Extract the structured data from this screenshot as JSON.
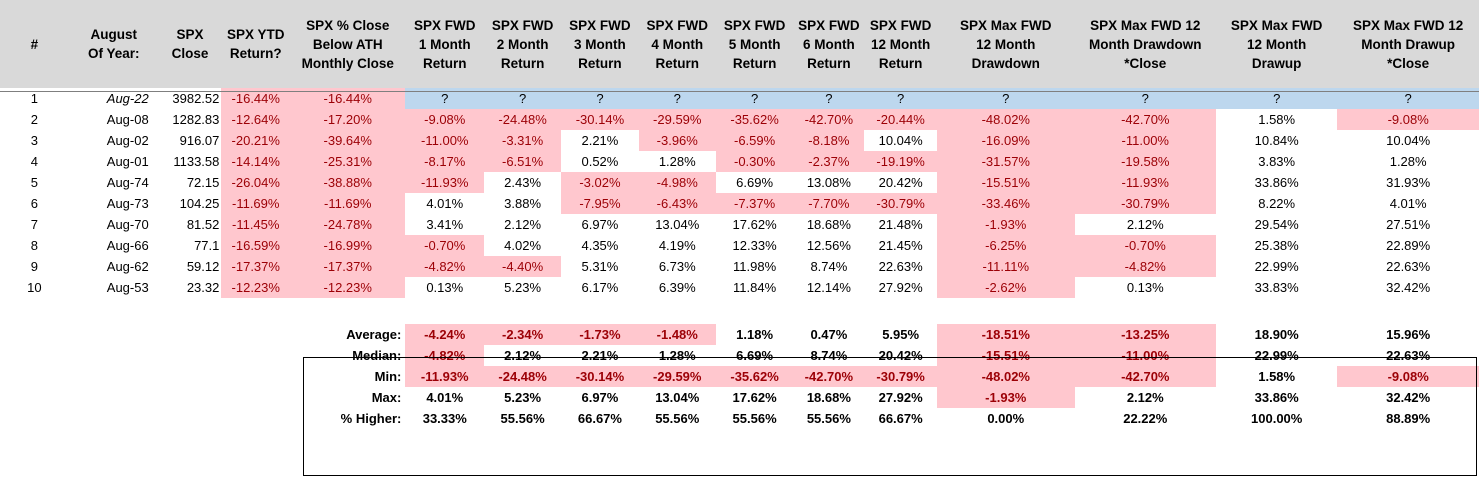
{
  "headers": [
    [
      "#"
    ],
    [
      "August",
      "Of Year:"
    ],
    [
      "SPX",
      "Close"
    ],
    [
      "SPX YTD",
      "Return?"
    ],
    [
      "SPX % Close",
      "Below ATH",
      "Monthly Close"
    ],
    [
      "SPX FWD",
      "1 Month",
      "Return"
    ],
    [
      "SPX FWD",
      "2 Month",
      "Return"
    ],
    [
      "SPX FWD",
      "3 Month",
      "Return"
    ],
    [
      "SPX FWD",
      "4 Month",
      "Return"
    ],
    [
      "SPX FWD",
      "5 Month",
      "Return"
    ],
    [
      "SPX FWD",
      "6 Month",
      "Return"
    ],
    [
      "SPX FWD",
      "12 Month",
      "Return"
    ],
    [
      "SPX Max FWD",
      "12 Month",
      "Drawdown"
    ],
    [
      "SPX Max FWD 12",
      "Month Drawdown",
      "*Close"
    ],
    [
      "SPX Max FWD",
      "12 Month",
      "Drawup"
    ],
    [
      "SPX Max FWD 12",
      "Month Drawup",
      "*Close"
    ]
  ],
  "rows": [
    [
      "1",
      "Aug-22",
      "3982.52",
      "-16.44%",
      "-16.44%",
      "?",
      "?",
      "?",
      "?",
      "?",
      "?",
      "?",
      "?",
      "?",
      "?",
      "?"
    ],
    [
      "2",
      "Aug-08",
      "1282.83",
      "-12.64%",
      "-17.20%",
      "-9.08%",
      "-24.48%",
      "-30.14%",
      "-29.59%",
      "-35.62%",
      "-42.70%",
      "-20.44%",
      "-48.02%",
      "-42.70%",
      "1.58%",
      "-9.08%"
    ],
    [
      "3",
      "Aug-02",
      "916.07",
      "-20.21%",
      "-39.64%",
      "-11.00%",
      "-3.31%",
      "2.21%",
      "-3.96%",
      "-6.59%",
      "-8.18%",
      "10.04%",
      "-16.09%",
      "-11.00%",
      "10.84%",
      "10.04%"
    ],
    [
      "4",
      "Aug-01",
      "1133.58",
      "-14.14%",
      "-25.31%",
      "-8.17%",
      "-6.51%",
      "0.52%",
      "1.28%",
      "-0.30%",
      "-2.37%",
      "-19.19%",
      "-31.57%",
      "-19.58%",
      "3.83%",
      "1.28%"
    ],
    [
      "5",
      "Aug-74",
      "72.15",
      "-26.04%",
      "-38.88%",
      "-11.93%",
      "2.43%",
      "-3.02%",
      "-4.98%",
      "6.69%",
      "13.08%",
      "20.42%",
      "-15.51%",
      "-11.93%",
      "33.86%",
      "31.93%"
    ],
    [
      "6",
      "Aug-73",
      "104.25",
      "-11.69%",
      "-11.69%",
      "4.01%",
      "3.88%",
      "-7.95%",
      "-6.43%",
      "-7.37%",
      "-7.70%",
      "-30.79%",
      "-33.46%",
      "-30.79%",
      "8.22%",
      "4.01%"
    ],
    [
      "7",
      "Aug-70",
      "81.52",
      "-11.45%",
      "-24.78%",
      "3.41%",
      "2.12%",
      "6.97%",
      "13.04%",
      "17.62%",
      "18.68%",
      "21.48%",
      "-1.93%",
      "2.12%",
      "29.54%",
      "27.51%"
    ],
    [
      "8",
      "Aug-66",
      "77.1",
      "-16.59%",
      "-16.99%",
      "-0.70%",
      "4.02%",
      "4.35%",
      "4.19%",
      "12.33%",
      "12.56%",
      "21.45%",
      "-6.25%",
      "-0.70%",
      "25.38%",
      "22.89%"
    ],
    [
      "9",
      "Aug-62",
      "59.12",
      "-17.37%",
      "-17.37%",
      "-4.82%",
      "-4.40%",
      "5.31%",
      "6.73%",
      "11.98%",
      "8.74%",
      "22.63%",
      "-11.11%",
      "-4.82%",
      "22.99%",
      "22.63%"
    ],
    [
      "10",
      "Aug-53",
      "23.32",
      "-12.23%",
      "-12.23%",
      "0.13%",
      "5.23%",
      "6.17%",
      "6.39%",
      "11.84%",
      "12.14%",
      "27.92%",
      "-2.62%",
      "0.13%",
      "33.83%",
      "32.42%"
    ]
  ],
  "summary": [
    {
      "label": "Average:",
      "values": [
        "-4.24%",
        "-2.34%",
        "-1.73%",
        "-1.48%",
        "1.18%",
        "0.47%",
        "5.95%",
        "-18.51%",
        "-13.25%",
        "18.90%",
        "15.96%"
      ]
    },
    {
      "label": "Median:",
      "values": [
        "-4.82%",
        "2.12%",
        "2.21%",
        "1.28%",
        "6.69%",
        "8.74%",
        "20.42%",
        "-15.51%",
        "-11.00%",
        "22.99%",
        "22.63%"
      ]
    },
    {
      "label": "Min:",
      "values": [
        "-11.93%",
        "-24.48%",
        "-30.14%",
        "-29.59%",
        "-35.62%",
        "-42.70%",
        "-30.79%",
        "-48.02%",
        "-42.70%",
        "1.58%",
        "-9.08%"
      ]
    },
    {
      "label": "Max:",
      "values": [
        "4.01%",
        "5.23%",
        "6.97%",
        "13.04%",
        "17.62%",
        "18.68%",
        "27.92%",
        "-1.93%",
        "2.12%",
        "33.86%",
        "32.42%"
      ]
    },
    {
      "label": "% Higher:",
      "values": [
        "33.33%",
        "55.56%",
        "66.67%",
        "55.56%",
        "55.56%",
        "55.56%",
        "66.67%",
        "0.00%",
        "22.22%",
        "100.00%",
        "88.89%"
      ]
    }
  ],
  "colors": {
    "header_bg": "#d9d9d9",
    "negative_fill": "#ffc7ce",
    "negative_text": "#9c0006",
    "unknown_fill": "#bdd7ee"
  }
}
